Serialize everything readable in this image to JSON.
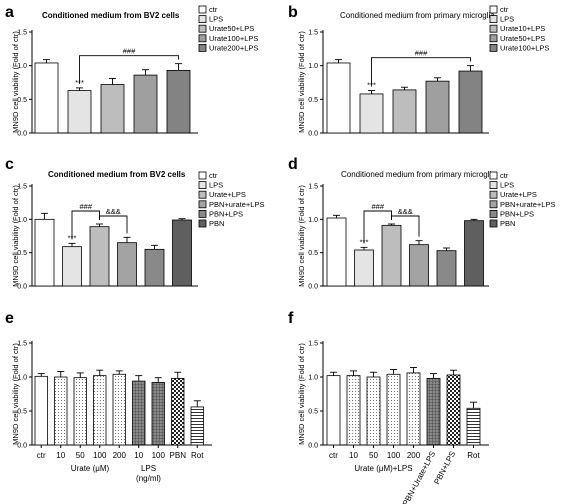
{
  "chart_data": [
    {
      "panel": "a",
      "type": "bar",
      "title": "Conditioned medium from BV2 cells",
      "ylabel": "MN9D cell viability (Fold of ctr)",
      "ylim": [
        0,
        1.5
      ],
      "yticks": [
        "0.0",
        "0.5",
        "1.0",
        "1.5"
      ],
      "categories": [
        "ctr",
        "LPS",
        "Urate50+LPS",
        "Urate100+LPS",
        "Urate200+LPS"
      ],
      "values": [
        1.04,
        0.63,
        0.72,
        0.86,
        0.93
      ],
      "errors": [
        0.05,
        0.04,
        0.09,
        0.08,
        0.1
      ],
      "fills": [
        "#ffffff",
        "#e4e4e4",
        "#bdbdbd",
        "#9f9f9f",
        "#838383"
      ],
      "legend": [
        "ctr",
        "LPS",
        "Urate50+LPS",
        "Urate100+LPS",
        "Urate200+LPS"
      ],
      "annotations": [
        {
          "text": "***",
          "bar": 1
        },
        {
          "text": "###",
          "from": 1,
          "to": 4
        }
      ]
    },
    {
      "panel": "b",
      "type": "bar",
      "title": "Conditioned medium from primary microglia",
      "ylabel": "MN9D cell viability (Fold of ctr)",
      "ylim": [
        0,
        1.5
      ],
      "yticks": [
        "0.0",
        "0.5",
        "1.0",
        "1.5"
      ],
      "categories": [
        "ctr",
        "LPS",
        "Urate10+LPS",
        "Urate50+LPS",
        "Urate100+LPS"
      ],
      "values": [
        1.04,
        0.58,
        0.64,
        0.77,
        0.92
      ],
      "errors": [
        0.05,
        0.05,
        0.04,
        0.05,
        0.08
      ],
      "fills": [
        "#ffffff",
        "#e4e4e4",
        "#bdbdbd",
        "#9f9f9f",
        "#838383"
      ],
      "legend": [
        "ctr",
        "LPS",
        "Urate10+LPS",
        "Urate50+LPS",
        "Urate100+LPS"
      ],
      "annotations": [
        {
          "text": "***",
          "bar": 1
        },
        {
          "text": "###",
          "from": 1,
          "to": 4
        }
      ]
    },
    {
      "panel": "c",
      "type": "bar",
      "title": "Conditioned medium from BV2 cells",
      "ylabel": "MN9D cell viability (Fold of ctr)",
      "ylim": [
        0,
        1.5
      ],
      "yticks": [
        "0.0",
        "0.5",
        "1.0",
        "1.5"
      ],
      "categories": [
        "ctr",
        "LPS",
        "Urate+LPS",
        "PBN+urate+LPS",
        "PBN+LPS",
        "PBN"
      ],
      "values": [
        1.0,
        0.59,
        0.89,
        0.65,
        0.55,
        0.99
      ],
      "errors": [
        0.09,
        0.05,
        0.04,
        0.08,
        0.06,
        0.02
      ],
      "fills": [
        "#ffffff",
        "#e4e4e4",
        "#bdbdbd",
        "#a3a3a3",
        "#898989",
        "#5f5f5f"
      ],
      "legend": [
        "ctr",
        "LPS",
        "Urate+LPS",
        "PBN+urate+LPS",
        "PBN+LPS",
        "PBN"
      ],
      "annotations": [
        {
          "text": "***",
          "bar": 1
        },
        {
          "text": "###",
          "from": 1,
          "to": 2
        },
        {
          "text": "&&&",
          "from": 2,
          "to": 3
        }
      ]
    },
    {
      "panel": "d",
      "type": "bar",
      "title": "Conditioned medium from primary microglia",
      "ylabel": "MN9D cell viability (Fold of ctr)",
      "ylim": [
        0,
        1.5
      ],
      "yticks": [
        "0.0",
        "0.5",
        "1.0",
        "1.5"
      ],
      "categories": [
        "ctr",
        "LPS",
        "Urate+LPS",
        "PBN+urate+LPS",
        "PBN+LPS",
        "PBN"
      ],
      "values": [
        1.02,
        0.54,
        0.91,
        0.62,
        0.53,
        0.98
      ],
      "errors": [
        0.04,
        0.04,
        0.02,
        0.06,
        0.04,
        0.02
      ],
      "fills": [
        "#ffffff",
        "#e4e4e4",
        "#bdbdbd",
        "#a3a3a3",
        "#898989",
        "#5f5f5f"
      ],
      "legend": [
        "ctr",
        "LPS",
        "Urate+LPS",
        "PBN+urate+LPS",
        "PBN+LPS",
        "PBN"
      ],
      "annotations": [
        {
          "text": "***",
          "bar": 1
        },
        {
          "text": "###",
          "from": 1,
          "to": 2
        },
        {
          "text": "&&&",
          "from": 2,
          "to": 3
        }
      ]
    },
    {
      "panel": "e",
      "type": "bar",
      "ylabel": "MN9D cell viability (Fold of ctr)",
      "ylim": [
        0,
        1.5
      ],
      "yticks": [
        "0.0",
        "0.5",
        "1.0",
        "1.5"
      ],
      "categories": [
        "ctr",
        "10",
        "50",
        "100",
        "200",
        "10",
        "100",
        "PBN",
        "Rot"
      ],
      "values": [
        1.01,
        1.0,
        0.99,
        1.02,
        1.04,
        0.94,
        0.92,
        0.98,
        0.56
      ],
      "errors": [
        0.04,
        0.08,
        0.07,
        0.08,
        0.05,
        0.08,
        0.07,
        0.09,
        0.09
      ],
      "patterns": [
        "plain",
        "dots",
        "dots",
        "dots",
        "dots",
        "grid",
        "grid",
        "check",
        "hlines"
      ],
      "group_labels": [
        "Urate (μM)",
        "LPS",
        "(ng/ml)"
      ]
    },
    {
      "panel": "f",
      "type": "bar",
      "ylabel": "MN9D cell viability (Fold of ctr)",
      "ylim": [
        0,
        1.5
      ],
      "yticks": [
        "0.0",
        "0.5",
        "1.0",
        "1.5"
      ],
      "categories": [
        "ctr",
        "10",
        "50",
        "100",
        "200",
        "PBN+Urate+LPS",
        "PBN+LPS",
        "Rot"
      ],
      "values": [
        1.02,
        1.02,
        1.0,
        1.04,
        1.06,
        0.98,
        1.03,
        0.54
      ],
      "errors": [
        0.05,
        0.07,
        0.07,
        0.07,
        0.08,
        0.07,
        0.07,
        0.09
      ],
      "patterns": [
        "plain",
        "dots",
        "dots",
        "dots",
        "dots",
        "grid",
        "check",
        "hlines"
      ],
      "group_labels": [
        "Urate (μM)+LPS"
      ]
    }
  ]
}
